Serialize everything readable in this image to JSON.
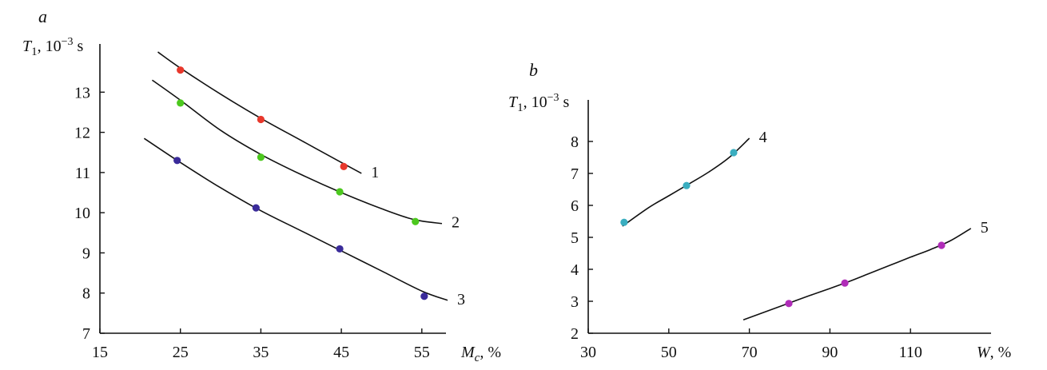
{
  "chart_data": [
    {
      "panel": "a",
      "type": "scatter",
      "xlabel": "M",
      "xlabel_sub": "c",
      "xlabel_unit": ", %",
      "ylabel": "T",
      "ylabel_sub": "1",
      "ylabel_unit": ", 10",
      "ylabel_exp": "−3",
      "ylabel_tail": " s",
      "xlim": [
        15,
        58
      ],
      "ylim": [
        7,
        14.2
      ],
      "xticks": [
        15,
        25,
        35,
        45,
        55
      ],
      "yticks": [
        7,
        8,
        9,
        10,
        11,
        12,
        13
      ],
      "series": [
        {
          "name": "1",
          "color": "#e8382c",
          "x": [
            25,
            35,
            45.3
          ],
          "y": [
            13.55,
            12.32,
            11.15
          ],
          "curve": [
            [
              22.2,
              14.0
            ],
            [
              25,
              13.6
            ],
            [
              30,
              12.95
            ],
            [
              35,
              12.35
            ],
            [
              40,
              11.8
            ],
            [
              45,
              11.25
            ],
            [
              47.5,
              10.98
            ]
          ]
        },
        {
          "name": "2",
          "color": "#4cc81e",
          "x": [
            25,
            35,
            44.8,
            54.2
          ],
          "y": [
            12.73,
            11.38,
            10.52,
            9.78
          ],
          "curve": [
            [
              21.5,
              13.3
            ],
            [
              25,
              12.8
            ],
            [
              30,
              12.05
            ],
            [
              35,
              11.45
            ],
            [
              40,
              10.95
            ],
            [
              45,
              10.5
            ],
            [
              50,
              10.1
            ],
            [
              54,
              9.83
            ],
            [
              57.5,
              9.73
            ]
          ]
        },
        {
          "name": "3",
          "color": "#3a2b9a",
          "x": [
            24.6,
            34.4,
            44.8,
            55.3
          ],
          "y": [
            11.3,
            10.12,
            9.1,
            7.92
          ],
          "curve": [
            [
              20.5,
              11.85
            ],
            [
              25,
              11.25
            ],
            [
              30,
              10.62
            ],
            [
              35,
              10.05
            ],
            [
              40,
              9.55
            ],
            [
              45,
              9.05
            ],
            [
              50,
              8.55
            ],
            [
              55,
              8.05
            ],
            [
              58.2,
              7.82
            ]
          ]
        }
      ]
    },
    {
      "panel": "b",
      "type": "scatter",
      "xlabel": "W",
      "xlabel_unit": ", %",
      "ylabel": "T",
      "ylabel_sub": "1",
      "ylabel_unit": ", 10",
      "ylabel_exp": "−3",
      "ylabel_tail": " s",
      "xlim": [
        30,
        130
      ],
      "ylim": [
        2,
        9.3
      ],
      "xticks": [
        30,
        50,
        70,
        90,
        110
      ],
      "yticks": [
        2,
        3,
        4,
        5,
        6,
        7,
        8
      ],
      "series": [
        {
          "name": "4",
          "color": "#3aaec0",
          "x": [
            38.9,
            54.4,
            66.1
          ],
          "y": [
            5.47,
            6.62,
            7.65
          ],
          "curve": [
            [
              38.5,
              5.35
            ],
            [
              45,
              5.93
            ],
            [
              50,
              6.3
            ],
            [
              55,
              6.67
            ],
            [
              60,
              7.05
            ],
            [
              65,
              7.5
            ],
            [
              70,
              8.1
            ]
          ]
        },
        {
          "name": "5",
          "color": "#b02cb8",
          "x": [
            79.8,
            93.7,
            117.7
          ],
          "y": [
            2.93,
            3.57,
            4.75
          ],
          "curve": [
            [
              68.5,
              2.42
            ],
            [
              75,
              2.72
            ],
            [
              80,
              2.95
            ],
            [
              85,
              3.18
            ],
            [
              90,
              3.4
            ],
            [
              95,
              3.63
            ],
            [
              100,
              3.88
            ],
            [
              105,
              4.13
            ],
            [
              110,
              4.38
            ],
            [
              115,
              4.62
            ],
            [
              120,
              4.9
            ],
            [
              125,
              5.28
            ]
          ]
        }
      ]
    }
  ]
}
